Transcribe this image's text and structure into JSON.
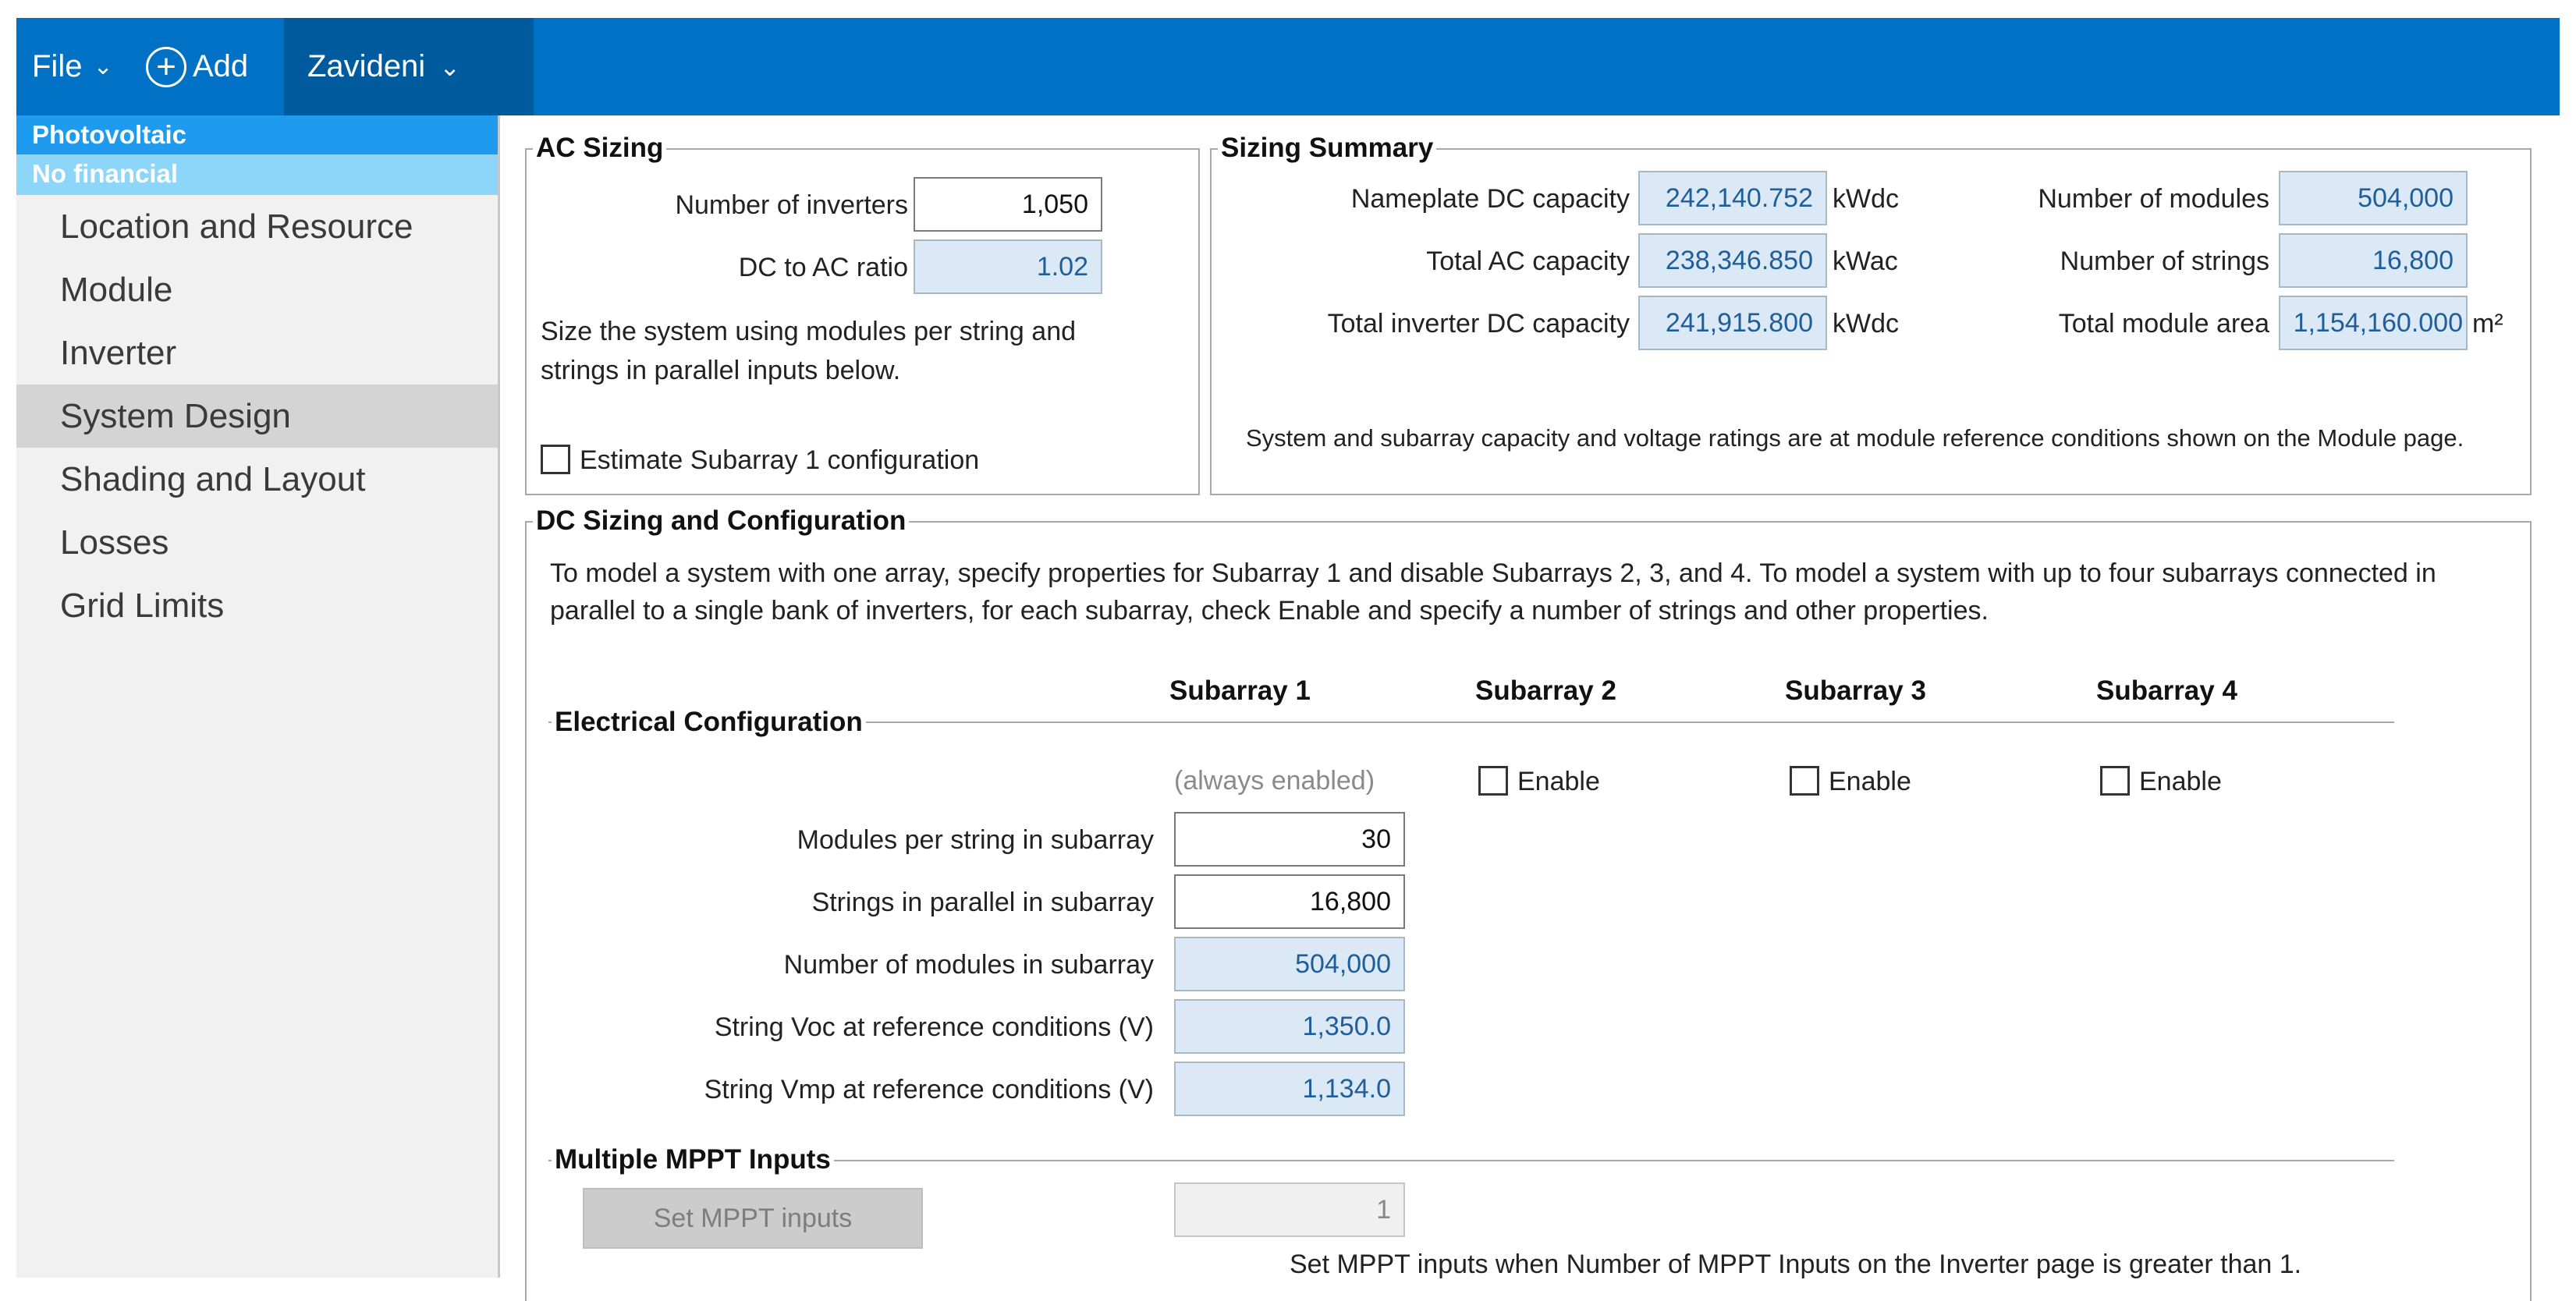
{
  "topbar": {
    "file_label": "File",
    "add_label": "Add",
    "project_name": "Zavideni"
  },
  "sidebar": {
    "technology": "Photovoltaic",
    "financial": "No financial",
    "items": [
      {
        "label": "Location and Resource"
      },
      {
        "label": "Module"
      },
      {
        "label": "Inverter"
      },
      {
        "label": "System Design",
        "active": true
      },
      {
        "label": "Shading and Layout"
      },
      {
        "label": "Losses"
      },
      {
        "label": "Grid Limits"
      }
    ]
  },
  "ac_sizing": {
    "title": "AC Sizing",
    "num_inverters_label": "Number of inverters",
    "num_inverters_value": "1,050",
    "dc_ac_ratio_label": "DC to AC ratio",
    "dc_ac_ratio_value": "1.02",
    "note_line1": "Size the system using modules per string and",
    "note_line2": "strings in parallel inputs below.",
    "estimate_label": "Estimate Subarray 1 configuration"
  },
  "sizing_summary": {
    "title": "Sizing Summary",
    "nameplate_label": "Nameplate DC capacity",
    "nameplate_value": "242,140.752",
    "nameplate_unit": "kWdc",
    "total_ac_label": "Total AC capacity",
    "total_ac_value": "238,346.850",
    "total_ac_unit": "kWac",
    "total_inv_dc_label": "Total inverter DC capacity",
    "total_inv_dc_value": "241,915.800",
    "total_inv_dc_unit": "kWdc",
    "num_modules_label": "Number of modules",
    "num_modules_value": "504,000",
    "num_strings_label": "Number of strings",
    "num_strings_value": "16,800",
    "module_area_label": "Total module area",
    "module_area_value": "1,154,160.000",
    "module_area_unit": "m²",
    "note": "System and subarray capacity and voltage ratings are at module reference conditions shown on the Module page."
  },
  "dc_sizing": {
    "title": "DC Sizing and Configuration",
    "intro_line1": "To model a system with one array, specify properties for Subarray 1 and disable Subarrays 2, 3, and 4.  To model a system with up to four subarrays connected in",
    "intro_line2": "parallel to a single bank of inverters, for each subarray, check Enable and specify a number of strings and other properties.",
    "electrical_title": "Electrical Configuration",
    "columns": [
      "Subarray 1",
      "Subarray 2",
      "Subarray 3",
      "Subarray 4"
    ],
    "always_enabled": "(always enabled)",
    "enable_label": "Enable",
    "modules_per_string_label": "Modules per string in subarray",
    "modules_per_string_value": "30",
    "strings_parallel_label": "Strings in parallel in subarray",
    "strings_parallel_value": "16,800",
    "num_modules_sub_label": "Number of modules in subarray",
    "num_modules_sub_value": "504,000",
    "voc_label": "String Voc at reference conditions (V)",
    "voc_value": "1,350.0",
    "vmp_label": "String Vmp at reference conditions (V)",
    "vmp_value": "1,134.0",
    "mppt_title": "Multiple MPPT Inputs",
    "mppt_button": "Set MPPT inputs",
    "mppt_value": "1",
    "mppt_note": "Set MPPT inputs when Number of MPPT Inputs on the Inverter page is greater than 1."
  }
}
